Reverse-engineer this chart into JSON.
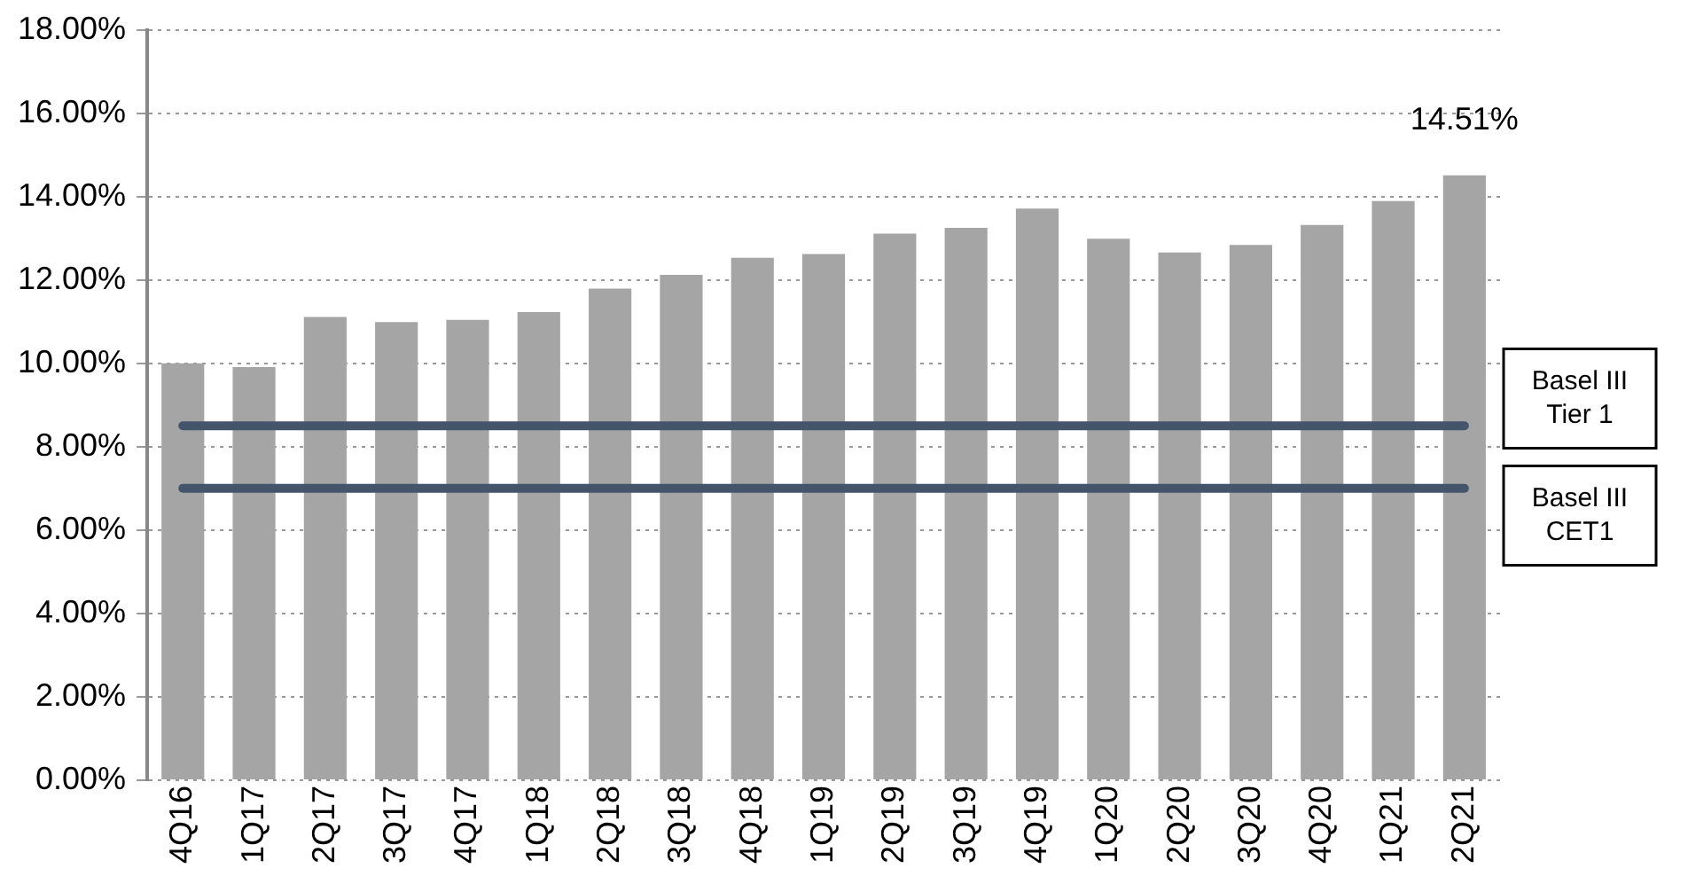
{
  "chart_data": {
    "type": "bar",
    "categories": [
      "4Q16",
      "1Q17",
      "2Q17",
      "3Q17",
      "4Q17",
      "1Q18",
      "2Q18",
      "3Q18",
      "4Q18",
      "1Q19",
      "2Q19",
      "3Q19",
      "4Q19",
      "1Q20",
      "2Q20",
      "3Q20",
      "4Q20",
      "1Q21",
      "2Q21"
    ],
    "values": [
      10.0,
      9.91,
      11.11,
      10.99,
      11.04,
      11.23,
      11.79,
      12.12,
      12.53,
      12.62,
      13.11,
      13.25,
      13.71,
      12.99,
      12.66,
      12.84,
      13.32,
      13.89,
      14.51
    ],
    "value_labels": [
      null,
      null,
      null,
      null,
      null,
      null,
      null,
      null,
      null,
      null,
      null,
      null,
      null,
      null,
      null,
      null,
      null,
      null,
      "14.51%"
    ],
    "color": "#a5a5a5",
    "ylim": [
      0,
      18
    ],
    "yticks": [
      {
        "value": 0,
        "label": "0.00%"
      },
      {
        "value": 2,
        "label": "2.00%"
      },
      {
        "value": 4,
        "label": "4.00%"
      },
      {
        "value": 6,
        "label": "6.00%"
      },
      {
        "value": 8,
        "label": "8.00%"
      },
      {
        "value": 10,
        "label": "10.00%"
      },
      {
        "value": 12,
        "label": "12.00%"
      },
      {
        "value": 14,
        "label": "14.00%"
      },
      {
        "value": 16,
        "label": "16.00%"
      },
      {
        "value": 18,
        "label": "18.00%"
      }
    ],
    "ref_lines": [
      {
        "axis": "y",
        "value": 8.5,
        "label": "Basel III Tier 1",
        "color": "#44546a"
      },
      {
        "axis": "y",
        "value": 7.0,
        "label": "Basel III CET1",
        "color": "#44546a"
      }
    ],
    "grid": "y",
    "legend": false
  }
}
